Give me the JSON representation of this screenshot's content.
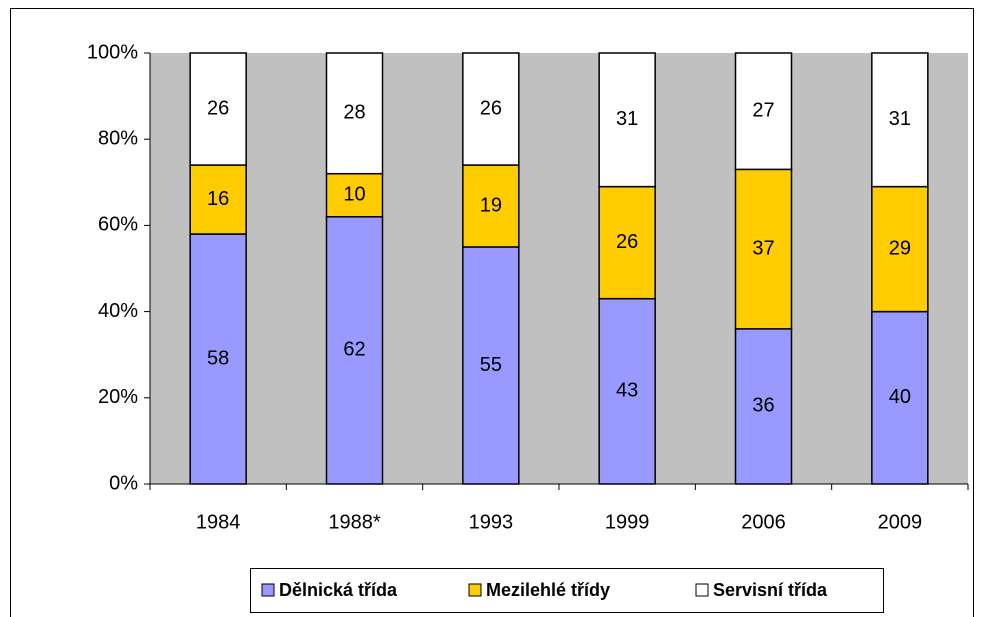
{
  "chart_data": {
    "type": "bar",
    "stacked": true,
    "categories": [
      "1984",
      "1988*",
      "1993",
      "1999",
      "2006",
      "2009"
    ],
    "series": [
      {
        "name": "Dělnická třída",
        "color": "#9999ff",
        "values": [
          58,
          62,
          55,
          43,
          36,
          40
        ]
      },
      {
        "name": "Mezilehlé třídy",
        "color": "#ffcc00",
        "values": [
          16,
          10,
          19,
          26,
          37,
          29
        ]
      },
      {
        "name": "Servisní třída",
        "color": "#ffffff",
        "values": [
          26,
          28,
          26,
          31,
          27,
          31
        ]
      }
    ],
    "ylim": [
      0,
      100
    ],
    "yticks": [
      {
        "value": 0,
        "label": "0%"
      },
      {
        "value": 20,
        "label": "20%"
      },
      {
        "value": 40,
        "label": "40%"
      },
      {
        "value": 60,
        "label": "60%"
      },
      {
        "value": 80,
        "label": "80%"
      },
      {
        "value": 100,
        "label": "100%"
      }
    ],
    "plot_background": "#c0c0c0",
    "legend": "bottom"
  }
}
